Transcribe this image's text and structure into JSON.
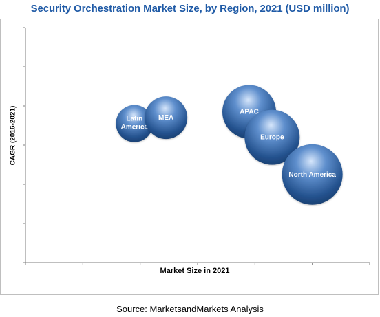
{
  "chart_data": {
    "type": "scatter",
    "variant": "bubble",
    "title": "Security Orchestration Market Size, by Region, 2021 (USD million)",
    "xlabel": "Market Size in 2021",
    "ylabel": "CAGR (2016-2021)",
    "grid": false,
    "tick_labels_shown": false,
    "bubble_color": "#2e5f9c",
    "series": [
      {
        "name": "Latin America",
        "x": 1.9,
        "y": 3.55,
        "size": 27
      },
      {
        "name": "MEA",
        "x": 2.45,
        "y": 3.7,
        "size": 31
      },
      {
        "name": "APAC",
        "x": 3.9,
        "y": 3.85,
        "size": 39
      },
      {
        "name": "Europe",
        "x": 4.3,
        "y": 3.2,
        "size": 40
      },
      {
        "name": "North America",
        "x": 5.0,
        "y": 2.25,
        "size": 44
      }
    ]
  },
  "source": "Source: MarketsandMarkets Analysis"
}
